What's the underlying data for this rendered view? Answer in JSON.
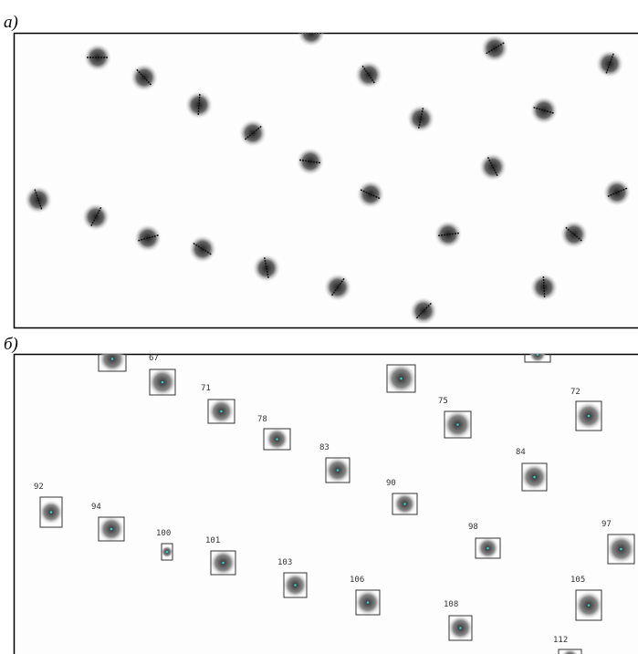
{
  "panels": [
    {
      "label": "а)"
    },
    {
      "label": "б)",
      "detections": [
        67,
        71,
        78,
        83,
        75,
        72,
        84,
        90,
        92,
        94,
        100,
        101,
        103,
        106,
        98,
        97,
        105,
        108,
        112
      ]
    }
  ]
}
